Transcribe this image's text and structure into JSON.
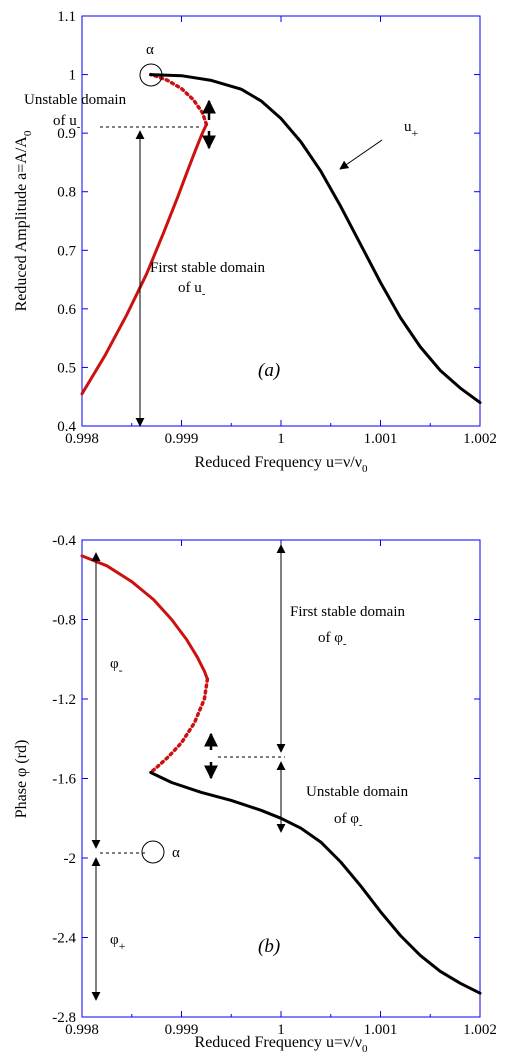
{
  "chart_data": [
    {
      "type": "line",
      "panel_label": "(a)",
      "xlabel": "Reduced Frequency u=ν/ν",
      "xlabel_sub": "0",
      "ylabel": "Reduced Amplitude a=A/A",
      "ylabel_sub": "0",
      "xlim": [
        0.998,
        1.002
      ],
      "ylim": [
        0.4,
        1.1
      ],
      "xticks": [
        0.998,
        0.999,
        1,
        1.001,
        1.002
      ],
      "xtick_labels": [
        "0.998",
        "0.999",
        "1",
        "1.001",
        "1.002"
      ],
      "yticks": [
        0.4,
        0.5,
        0.6,
        0.7,
        0.8,
        0.9,
        1,
        1.1
      ],
      "ytick_labels": [
        "0.4",
        "0.5",
        "0.6",
        "0.7",
        "0.8",
        "0.9",
        "1",
        "1.1"
      ],
      "grid": false,
      "series": [
        {
          "name": "u-",
          "color": "#cc1111",
          "style": "solid",
          "x": [
            0.998,
            0.99823,
            0.99845,
            0.99865,
            0.99882,
            0.99896,
            0.99907,
            0.99915,
            0.99921,
            0.99925
          ],
          "y": [
            0.455,
            0.52,
            0.59,
            0.66,
            0.73,
            0.79,
            0.84,
            0.875,
            0.9,
            0.915
          ]
        },
        {
          "name": "unstable",
          "color": "#cc1111",
          "style": "dotted",
          "x": [
            0.99925,
            0.99921,
            0.99912,
            0.999,
            0.99886,
            0.99875,
            0.99869
          ],
          "y": [
            0.915,
            0.935,
            0.957,
            0.976,
            0.99,
            0.997,
            1.0
          ]
        },
        {
          "name": "u+",
          "color": "#000000",
          "style": "solid",
          "x": [
            0.99869,
            0.999,
            0.9993,
            0.9996,
            0.9998,
            1.0,
            1.0002,
            1.0004,
            1.0006,
            1.0008,
            1.001,
            1.0012,
            1.0014,
            1.0016,
            1.0018,
            1.002
          ],
          "y": [
            1.0,
            0.998,
            0.99,
            0.975,
            0.955,
            0.925,
            0.885,
            0.835,
            0.775,
            0.71,
            0.645,
            0.585,
            0.535,
            0.495,
            0.465,
            0.44
          ]
        }
      ],
      "annotations": {
        "alpha": "α",
        "u_plus": "u",
        "u_plus_sub": "+",
        "unstable_1": "Unstable domain",
        "unstable_2": "of u",
        "unstable_2_sub": "-",
        "stable_1": "First stable domain",
        "stable_2": "of u",
        "stable_2_sub": "-"
      }
    },
    {
      "type": "line",
      "panel_label": "(b)",
      "xlabel": "Reduced Frequency u=ν/ν",
      "xlabel_sub": "0",
      "ylabel": "Phase φ (rd)",
      "xlim": [
        0.998,
        1.002
      ],
      "ylim": [
        -2.8,
        -0.4
      ],
      "xticks": [
        0.998,
        0.999,
        1,
        1.001,
        1.002
      ],
      "xtick_labels": [
        "0.998",
        "0.999",
        "1",
        "1.001",
        "1.002"
      ],
      "yticks": [
        -2.8,
        -2.4,
        -2,
        -1.6,
        -1.2,
        -0.8,
        -0.4
      ],
      "ytick_labels": [
        "-2.8",
        "-2.4",
        "-2",
        "-1.6",
        "-1.2",
        "-0.8",
        "-0.4"
      ],
      "grid": false,
      "series": [
        {
          "name": "φ-",
          "color": "#cc1111",
          "style": "solid",
          "x": [
            0.998,
            0.99825,
            0.9985,
            0.99872,
            0.9989,
            0.99905,
            0.99916,
            0.99923,
            0.99926
          ],
          "y": [
            -0.48,
            -0.53,
            -0.61,
            -0.7,
            -0.8,
            -0.9,
            -0.99,
            -1.06,
            -1.1
          ]
        },
        {
          "name": "unstable",
          "color": "#cc1111",
          "style": "dotted",
          "x": [
            0.99926,
            0.99923,
            0.99913,
            0.999,
            0.99887,
            0.99876,
            0.99869
          ],
          "y": [
            -1.1,
            -1.2,
            -1.32,
            -1.42,
            -1.49,
            -1.54,
            -1.57
          ]
        },
        {
          "name": "φ+",
          "color": "#000000",
          "style": "solid",
          "x": [
            0.99869,
            0.9989,
            0.9992,
            0.9995,
            0.9998,
            1.0,
            1.0002,
            1.0004,
            1.0006,
            1.0008,
            1.001,
            1.0012,
            1.0014,
            1.0016,
            1.0018,
            1.002
          ],
          "y": [
            -1.57,
            -1.62,
            -1.67,
            -1.71,
            -1.76,
            -1.8,
            -1.85,
            -1.92,
            -2.02,
            -2.14,
            -2.27,
            -2.39,
            -2.49,
            -2.57,
            -2.63,
            -2.68
          ]
        }
      ],
      "annotations": {
        "alpha": "α",
        "phi_minus": "φ",
        "phi_minus_sub": "-",
        "phi_plus": "φ",
        "phi_plus_sub": "+",
        "stable_1": "First stable domain",
        "stable_2": "of φ",
        "stable_2_sub": "-",
        "unstable_1": "Unstable domain",
        "unstable_2": "of φ",
        "unstable_2_sub": "-"
      }
    }
  ]
}
